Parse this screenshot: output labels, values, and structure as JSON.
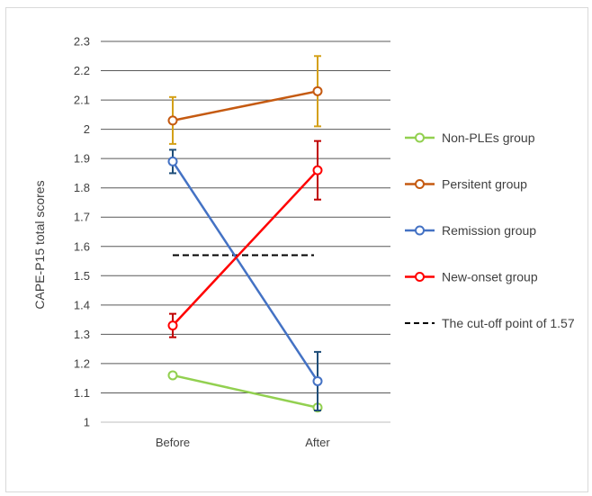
{
  "chart_data": {
    "type": "line",
    "title": "",
    "ylabel": "CAPE-P15 total scores",
    "xlabel": "",
    "categories": [
      "Before",
      "After"
    ],
    "ylim": [
      1,
      2.3
    ],
    "ytick_step": 0.1,
    "yticks": [
      "1",
      "1.1",
      "1.2",
      "1.3",
      "1.4",
      "1.5",
      "1.6",
      "1.7",
      "1.8",
      "1.9",
      "2",
      "2.1",
      "2.2",
      "2.3"
    ],
    "grid": true,
    "legend_position": "right",
    "series": [
      {
        "name": "Non-PLEs group",
        "values": [
          1.16,
          1.05
        ],
        "err_low": [
          1.16,
          1.05
        ],
        "err_high": [
          1.16,
          1.05
        ],
        "color": "#92d050",
        "err_color": "#92d050"
      },
      {
        "name": "Persitent group",
        "values": [
          2.03,
          2.13
        ],
        "err_low": [
          1.95,
          2.01
        ],
        "err_high": [
          2.11,
          2.25
        ],
        "color": "#c55a11",
        "err_color": "#d4a017"
      },
      {
        "name": "Remission group",
        "values": [
          1.89,
          1.14
        ],
        "err_low": [
          1.85,
          1.04
        ],
        "err_high": [
          1.93,
          1.24
        ],
        "color": "#4472c4",
        "err_color": "#1f4e79"
      },
      {
        "name": "New-onset group",
        "values": [
          1.33,
          1.86
        ],
        "err_low": [
          1.29,
          1.76
        ],
        "err_high": [
          1.37,
          1.96
        ],
        "color": "#ff0000",
        "err_color": "#c00000"
      }
    ],
    "reference_line": {
      "label": "The cut-off point of 1.57",
      "value": 1.57,
      "color": "#000000"
    }
  }
}
